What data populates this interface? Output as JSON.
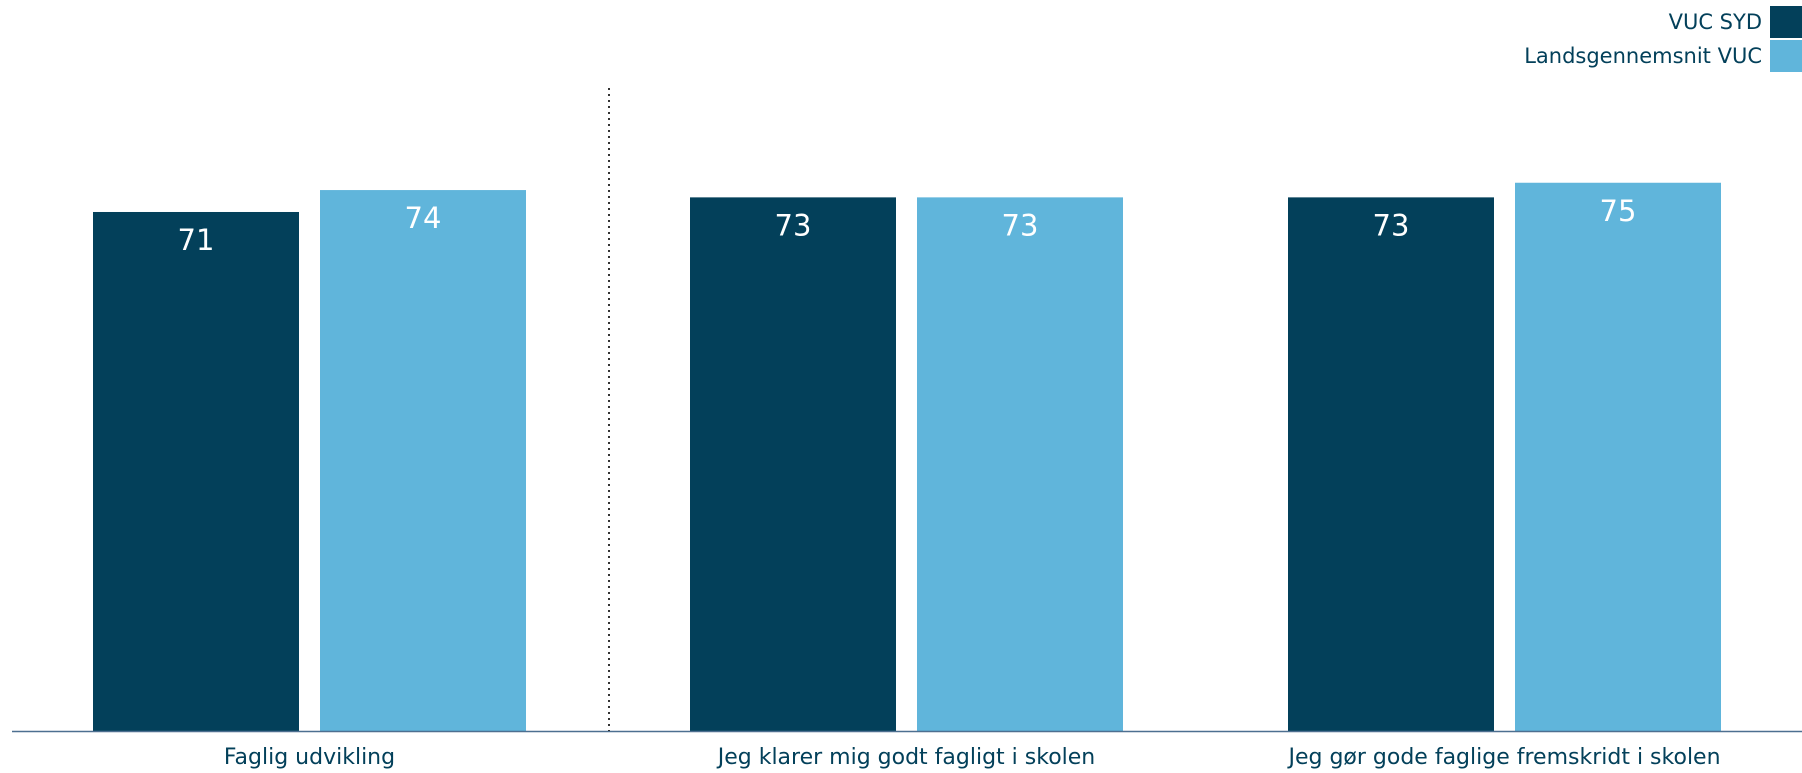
{
  "chart_data": {
    "type": "bar",
    "categories": [
      "Faglig udvikling",
      "Jeg klarer mig godt fagligt i skolen",
      "Jeg gør gode faglige fremskridt i skolen"
    ],
    "series": [
      {
        "name": "VUC SYD",
        "color": "#03405a",
        "values": [
          71,
          73,
          73
        ]
      },
      {
        "name": "Landsgennemsnit VUC",
        "color": "#60b5db",
        "values": [
          74,
          73,
          75
        ]
      }
    ],
    "ylim": [
      0,
      100
    ],
    "grid": false,
    "legend_position": "top-right",
    "separator_after_category": 0
  }
}
